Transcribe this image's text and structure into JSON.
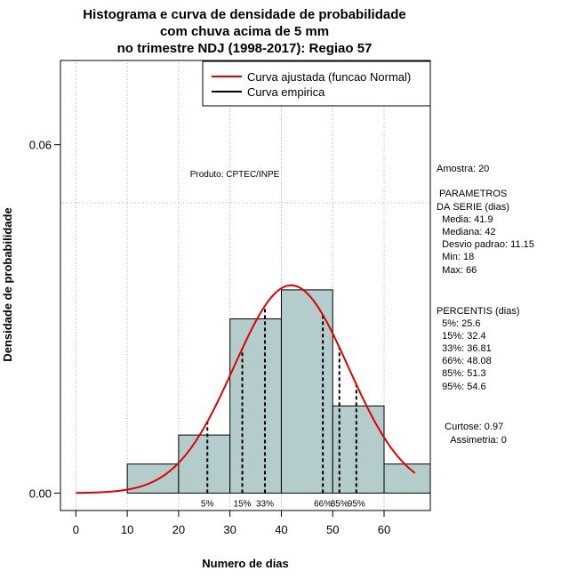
{
  "chart_data": {
    "type": "bar",
    "title_lines": [
      "Histograma e curva de densidade de probabilidade",
      "com chuva acima de 5 mm",
      "no trimestre NDJ (1998-2017): Regiao 57"
    ],
    "xlabel": "Numero de dias",
    "ylabel": "Densidade de probabilidade",
    "xlim": [
      -3,
      69
    ],
    "ylim": [
      -0.003,
      0.0745
    ],
    "x_ticks": [
      0,
      10,
      20,
      30,
      40,
      50,
      60
    ],
    "x_tick_labels": [
      "0",
      "10",
      "20",
      "30",
      "40",
      "50",
      "60"
    ],
    "y_ticks": [
      0,
      0.06
    ],
    "y_tick_labels": [
      "0.00",
      "0.06"
    ],
    "grid": true,
    "grid_x": [
      0,
      10,
      20,
      30,
      40,
      50,
      60
    ],
    "grid_y": [
      0.05
    ],
    "bins": [
      {
        "x0": 10,
        "x1": 20,
        "density": 0.005
      },
      {
        "x0": 20,
        "x1": 30,
        "density": 0.01
      },
      {
        "x0": 30,
        "x1": 40,
        "density": 0.03
      },
      {
        "x0": 40,
        "x1": 50,
        "density": 0.035
      },
      {
        "x0": 50,
        "x1": 60,
        "density": 0.015
      },
      {
        "x0": 60,
        "x1": 70,
        "density": 0.005
      }
    ],
    "normal_curve": {
      "mean": 41.9,
      "sd": 11.15,
      "x_from": 0,
      "x_to": 66
    },
    "legend": {
      "position": "top-right",
      "entries": [
        {
          "label": "Curva ajustada (funcao Normal)",
          "color": "#e00000"
        },
        {
          "label": "Curva empirica",
          "color": "#000000"
        }
      ]
    },
    "annotation": "Produto: CPTEC/INPE",
    "percentile_lines": [
      {
        "label": "5%",
        "value": 25.6
      },
      {
        "label": "15%",
        "value": 32.4
      },
      {
        "label": "33%",
        "value": 36.81
      },
      {
        "label": "66%",
        "value": 48.08
      },
      {
        "label": "85%",
        "value": 51.3
      },
      {
        "label": "95%",
        "value": 54.6
      }
    ],
    "colors": {
      "bar_fill": "#b5cccc",
      "curve": "#e00000",
      "grid": "#b0b0b0"
    }
  },
  "side_panel": {
    "lines": [
      "Amostra: 20",
      " PARAMETROS",
      "DA SERIE (dias)",
      "  Media: 41.9",
      "  Mediana: 42",
      "  Desvio padrao: 11.15",
      "  Min: 18",
      "  Max: 66",
      "PERCENTIS (dias)",
      "  5%: 25.6",
      "  15%: 32.4",
      "  33%: 36.81",
      "  66%: 48.08",
      "  85%: 51.3",
      "  95%: 54.6",
      "   Curtose: 0.97",
      "     Assimetria: 0"
    ]
  }
}
